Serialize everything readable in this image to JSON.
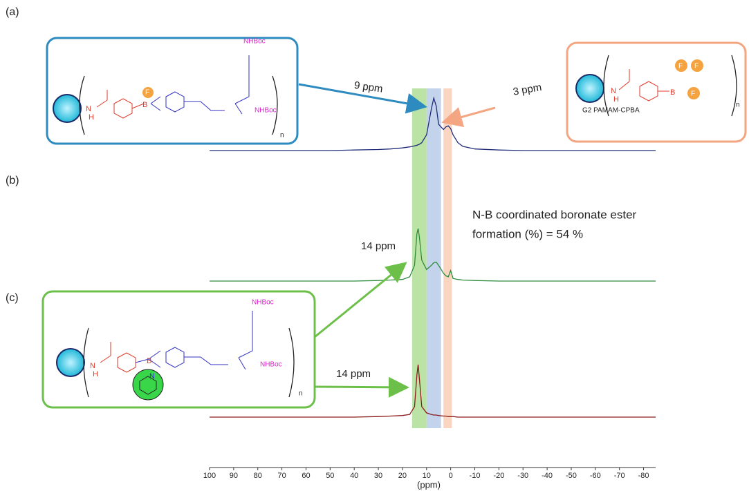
{
  "chart_data": {
    "type": "line",
    "panel_labels": [
      "(a)",
      "(b)",
      "(c)"
    ],
    "x_label": "(ppm)",
    "xlim": [
      100,
      -85
    ],
    "xticks": [
      100,
      90,
      80,
      70,
      60,
      50,
      40,
      30,
      20,
      10,
      0,
      -10,
      -20,
      -30,
      -40,
      -50,
      -60,
      -70,
      -80
    ],
    "x": [
      100,
      90,
      80,
      70,
      60,
      50,
      40,
      30,
      25,
      20,
      17,
      15,
      14,
      13.5,
      13,
      12,
      10,
      8,
      7,
      6,
      5,
      3,
      2,
      1,
      0,
      -1,
      -3,
      -5,
      -10,
      -20,
      -30,
      -40,
      -50,
      -60,
      -70,
      -85
    ],
    "series": [
      {
        "name": "(a)",
        "color": "#1f2a7a",
        "values": [
          0,
          0,
          0,
          0,
          0,
          0,
          0.01,
          0.02,
          0.03,
          0.05,
          0.07,
          0.09,
          0.1,
          0.11,
          0.12,
          0.15,
          0.3,
          0.8,
          1.0,
          0.85,
          0.5,
          0.4,
          0.45,
          0.47,
          0.42,
          0.3,
          0.15,
          0.08,
          0.03,
          0.01,
          0,
          0,
          0,
          0,
          0,
          0
        ]
      },
      {
        "name": "(b)",
        "color": "#2e8b3e",
        "values": [
          0,
          0,
          0,
          0,
          0,
          0,
          0,
          0.01,
          0.02,
          0.03,
          0.08,
          0.3,
          0.9,
          1.0,
          0.85,
          0.4,
          0.22,
          0.3,
          0.35,
          0.36,
          0.3,
          0.15,
          0.1,
          0.08,
          0.2,
          0.05,
          0.03,
          0.02,
          0.01,
          0,
          0,
          0,
          0,
          0,
          0,
          0
        ]
      },
      {
        "name": "(c)",
        "color": "#8b1a1a",
        "values": [
          0,
          0,
          0,
          0,
          0,
          0,
          0,
          0.01,
          0.02,
          0.03,
          0.05,
          0.2,
          0.8,
          1.0,
          0.75,
          0.2,
          0.08,
          0.05,
          0.04,
          0.04,
          0.03,
          0.02,
          0.02,
          0.01,
          0.01,
          0.01,
          0,
          0,
          0,
          0,
          0,
          0,
          0,
          0,
          0,
          0
        ]
      }
    ],
    "bands": [
      {
        "from": 16,
        "to": 10,
        "color": "#8fd16a"
      },
      {
        "from": 10,
        "to": 4,
        "color": "#9bb5de"
      },
      {
        "from": 3,
        "to": -0.5,
        "color": "#f7b99a"
      }
    ],
    "annotations": [
      "9 ppm",
      "3 ppm",
      "14 ppm",
      "14 ppm",
      "N-B coordinated boronate ester",
      "formation (%) = 54 %"
    ],
    "structures": [
      {
        "texts": [
          "NHBoc",
          "NHBoc",
          "F",
          "B",
          "N",
          "H",
          "n"
        ]
      },
      {
        "texts": [
          "G2 PAMAM-CPBA",
          "F",
          "F",
          "F",
          "B",
          "N",
          "H",
          "n"
        ]
      },
      {
        "texts": [
          "NHBoc",
          "NHBoc",
          "B",
          "N",
          "n",
          "N",
          "H"
        ]
      }
    ]
  }
}
